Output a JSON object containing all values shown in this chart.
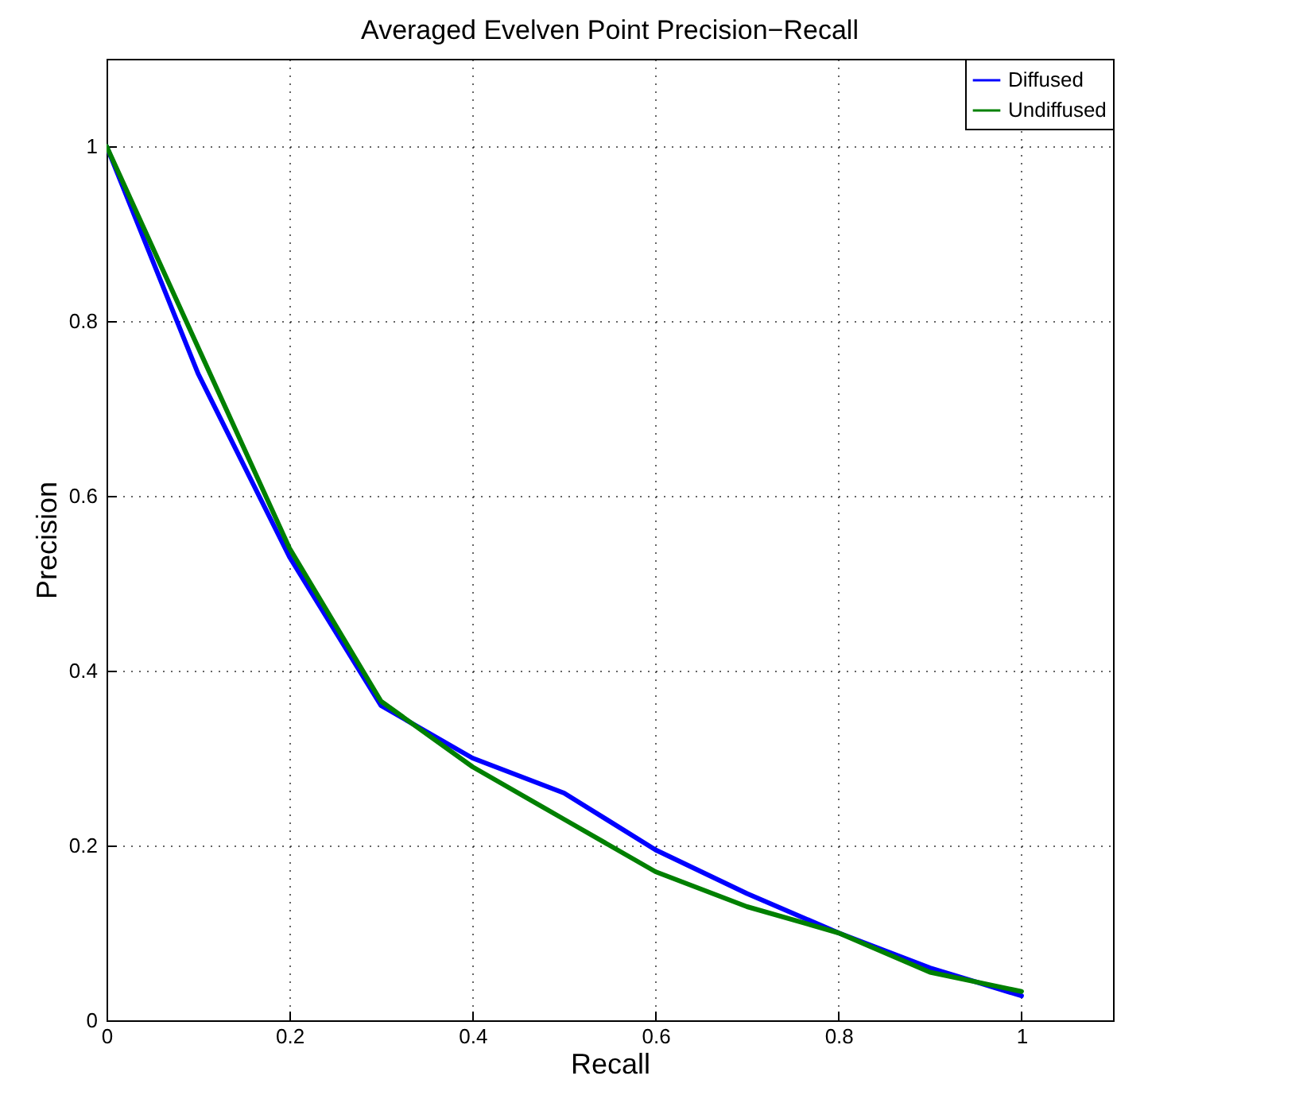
{
  "chart_data": {
    "type": "line",
    "title": "Averaged Evelven Point Precision−Recall",
    "xlabel": "Recall",
    "ylabel": "Precision",
    "x": [
      0,
      0.1,
      0.2,
      0.3,
      0.4,
      0.5,
      0.6,
      0.7,
      0.8,
      0.9,
      1
    ],
    "series": [
      {
        "name": "Diffused",
        "color": "#0000ff",
        "values": [
          1,
          0.74,
          0.53,
          0.36,
          0.3,
          0.26,
          0.195,
          0.145,
          0.1,
          0.06,
          0.028
        ]
      },
      {
        "name": "Undiffused",
        "color": "#008000",
        "values": [
          1,
          0.77,
          0.54,
          0.365,
          0.29,
          0.23,
          0.17,
          0.13,
          0.1,
          0.055,
          0.033
        ]
      }
    ],
    "xlim": [
      0,
      1.1
    ],
    "ylim": [
      0,
      1.1
    ],
    "xticks": [
      0,
      0.2,
      0.4,
      0.6,
      0.8,
      1
    ],
    "yticks": [
      0,
      0.2,
      0.4,
      0.6,
      0.8,
      1
    ],
    "grid": true,
    "legend": "top right",
    "marker": "none",
    "line_style": "solid"
  }
}
